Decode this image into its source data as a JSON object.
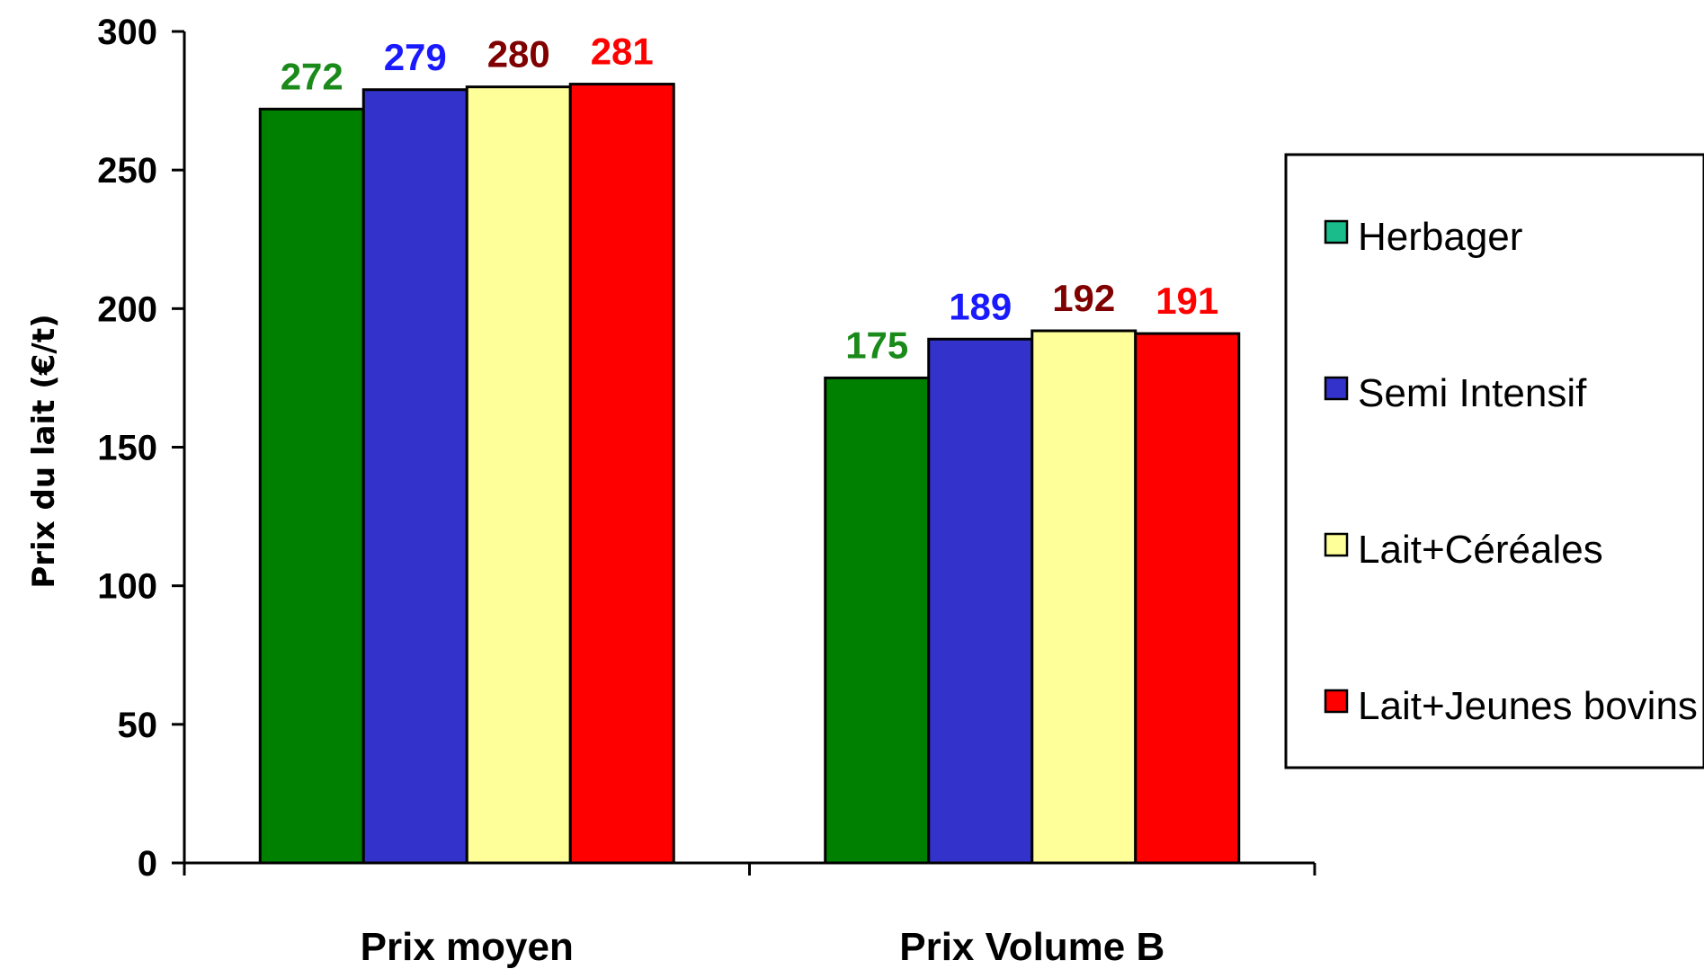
{
  "chart_data": {
    "type": "bar",
    "title": "",
    "xlabel": "",
    "ylabel": "Prix du lait (€/t)",
    "ylim": [
      0,
      300
    ],
    "yticks": [
      0,
      50,
      100,
      150,
      200,
      250,
      300
    ],
    "categories": [
      "Prix moyen",
      "Prix Volume B"
    ],
    "series": [
      {
        "name": "Herbager",
        "values": [
          272,
          175
        ],
        "color": "#008000",
        "label_color": "#1a8a1a",
        "legend_color": "#1abc8c"
      },
      {
        "name": "Semi Intensif",
        "values": [
          279,
          189
        ],
        "color": "#3333cc",
        "label_color": "#1a1aff",
        "legend_color": "#3333cc"
      },
      {
        "name": "Lait+Céréales",
        "values": [
          280,
          192
        ],
        "color": "#ffff99",
        "label_color": "#800000",
        "legend_color": "#ffff99"
      },
      {
        "name": "Lait+Jeunes bovins",
        "values": [
          281,
          191
        ],
        "color": "#ff0000",
        "label_color": "#ff0000",
        "legend_color": "#ff0000"
      }
    ],
    "grid": false,
    "legend_position": "right"
  }
}
